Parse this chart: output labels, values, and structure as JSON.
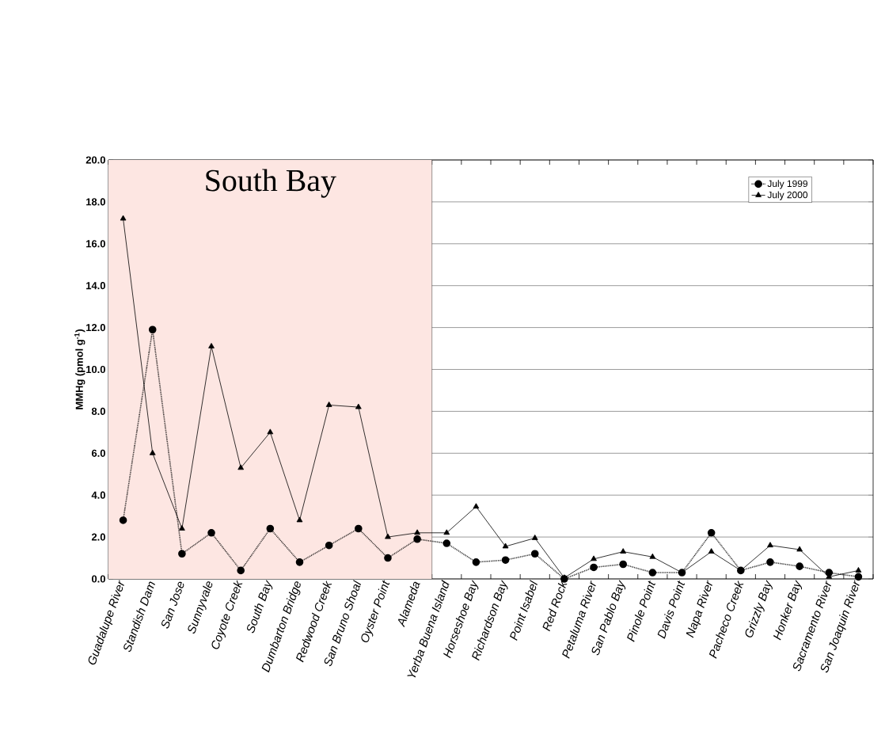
{
  "chart_data": {
    "type": "line",
    "ylabel": "MMHg (pmol g$^{-1}$)",
    "categories": [
      "Guadalupe River",
      "Standish Dam",
      "San Jose",
      "Sunnyvale",
      "Coyote Creek",
      "South Bay",
      "Dumbarton Bridge",
      "Redwood Creek",
      "San Bruno Shoal",
      "Oyster Point",
      "Alameda",
      "Yerba Buena Island",
      "Horseshoe Bay",
      "Richardson Bay",
      "Point Isabel",
      "Red Rock",
      "Petaluma River",
      "San Pablo Bay",
      "Pinole Point",
      "Davis Point",
      "Napa River",
      "Pacheco Creek",
      "Grizzly Bay",
      "Honker Bay",
      "Sacramento River",
      "San Joaquin River"
    ],
    "series": [
      {
        "name": "July 1999",
        "color": "#000000",
        "marker": "circle",
        "line_style": "dotted",
        "values": [
          2.8,
          11.9,
          1.2,
          2.2,
          0.4,
          2.4,
          0.8,
          1.6,
          2.4,
          1.0,
          1.9,
          1.7,
          0.8,
          0.9,
          1.2,
          0.0,
          0.55,
          0.7,
          0.3,
          0.3,
          2.2,
          0.4,
          0.8,
          0.6,
          0.3,
          0.1
        ]
      },
      {
        "name": "July 2000",
        "color": "#000000",
        "marker": "triangle",
        "line_style": "solid",
        "values": [
          17.2,
          6.0,
          2.4,
          11.1,
          5.3,
          7.0,
          2.8,
          8.3,
          8.2,
          2.0,
          2.2,
          2.2,
          3.45,
          1.55,
          1.95,
          0.05,
          0.95,
          1.3,
          1.05,
          0.3,
          1.3,
          0.4,
          1.6,
          1.4,
          0.1,
          0.4
        ]
      }
    ],
    "ylim": [
      0,
      20
    ],
    "yticks": [
      {
        "value": 0,
        "label": "0.0"
      },
      {
        "value": 2,
        "label": "2.0"
      },
      {
        "value": 4,
        "label": "4.0"
      },
      {
        "value": 6,
        "label": "6.0"
      },
      {
        "value": 8,
        "label": "8.0"
      },
      {
        "value": 10,
        "label": "10.0"
      },
      {
        "value": 12,
        "label": "12.0"
      },
      {
        "value": 14,
        "label": "14.0"
      },
      {
        "value": 16,
        "label": "16.0"
      },
      {
        "value": 18,
        "label": "18.0"
      },
      {
        "value": 20,
        "label": "20.0"
      }
    ],
    "bands": [
      {
        "axis": "x",
        "from": "Guadalupe River",
        "to": "Alameda",
        "label": "South Bay",
        "color": "#fde6e2"
      }
    ],
    "grid": "y",
    "legend": "top right"
  }
}
